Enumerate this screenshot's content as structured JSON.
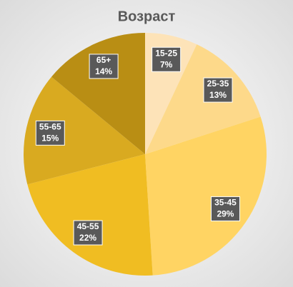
{
  "chart_data": {
    "type": "pie",
    "title": "Возраст",
    "categories": [
      "15-25",
      "25-35",
      "35-45",
      "45-55",
      "55-65",
      "65+"
    ],
    "values": [
      7,
      13,
      29,
      22,
      15,
      14
    ],
    "value_labels": [
      "7%",
      "13%",
      "29%",
      "22%",
      "15%",
      "14%"
    ],
    "colors": [
      "#fde3b8",
      "#fdd98a",
      "#ffd463",
      "#f0bd22",
      "#d9aa20",
      "#b98e14"
    ]
  }
}
